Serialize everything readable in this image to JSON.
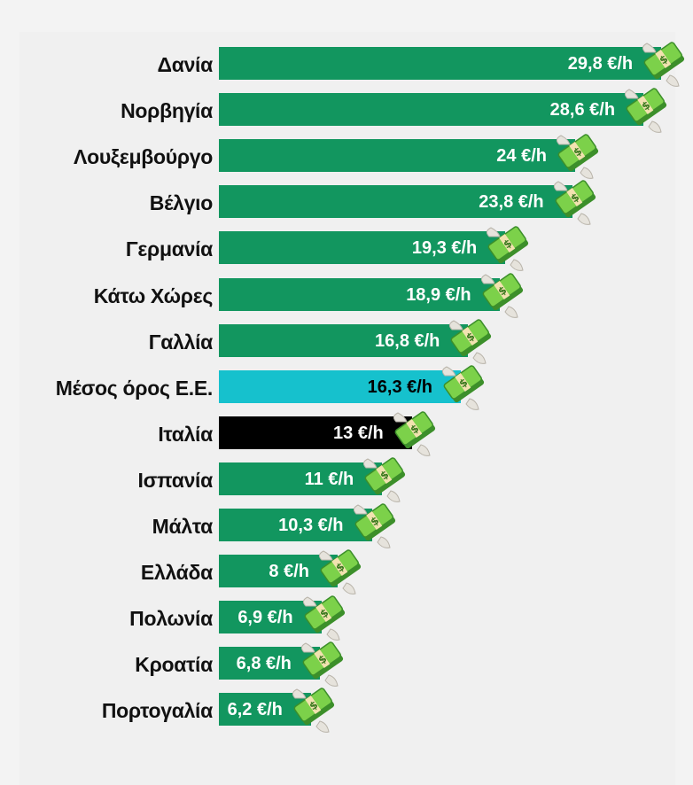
{
  "chart_data": {
    "type": "bar",
    "orientation": "horizontal",
    "unit": "€/h",
    "categories": [
      "Δανία",
      "Νορβηγία",
      "Λουξεμβούργο",
      "Βέλγιο",
      "Γερμανία",
      "Κάτω Χώρες",
      "Γαλλία",
      "Μέσος όρος Ε.Ε.",
      "Ιταλία",
      "Ισπανία",
      "Μάλτα",
      "Ελλάδα",
      "Πολωνία",
      "Κροατία",
      "Πορτογαλία"
    ],
    "values": [
      29.8,
      28.6,
      24,
      23.8,
      19.3,
      18.9,
      16.8,
      16.3,
      13,
      11,
      10.3,
      8,
      6.9,
      6.8,
      6.2
    ],
    "value_labels": [
      "29,8 €/h",
      "28,6 €/h",
      "24 €/h",
      "23,8 €/h",
      "19,3 €/h",
      "18,9 €/h",
      "16,8 €/h",
      "16,3 €/h",
      "13 €/h",
      "11 €/h",
      "10,3 €/h",
      "8 €/h",
      "6,9 €/h",
      "6,8 €/h",
      "6,2 €/h"
    ],
    "bar_colors": [
      "#12965f",
      "#12965f",
      "#12965f",
      "#12965f",
      "#12965f",
      "#12965f",
      "#12965f",
      "#16c1cd",
      "#000000",
      "#12965f",
      "#12965f",
      "#12965f",
      "#12965f",
      "#12965f",
      "#12965f"
    ],
    "value_label_colors": [
      "#ffffff",
      "#ffffff",
      "#ffffff",
      "#ffffff",
      "#ffffff",
      "#ffffff",
      "#ffffff",
      "#000000",
      "#ffffff",
      "#ffffff",
      "#ffffff",
      "#ffffff",
      "#ffffff",
      "#ffffff",
      "#ffffff"
    ],
    "marker_icon": "money-with-wings-icon",
    "grid": false,
    "legend": "none"
  }
}
